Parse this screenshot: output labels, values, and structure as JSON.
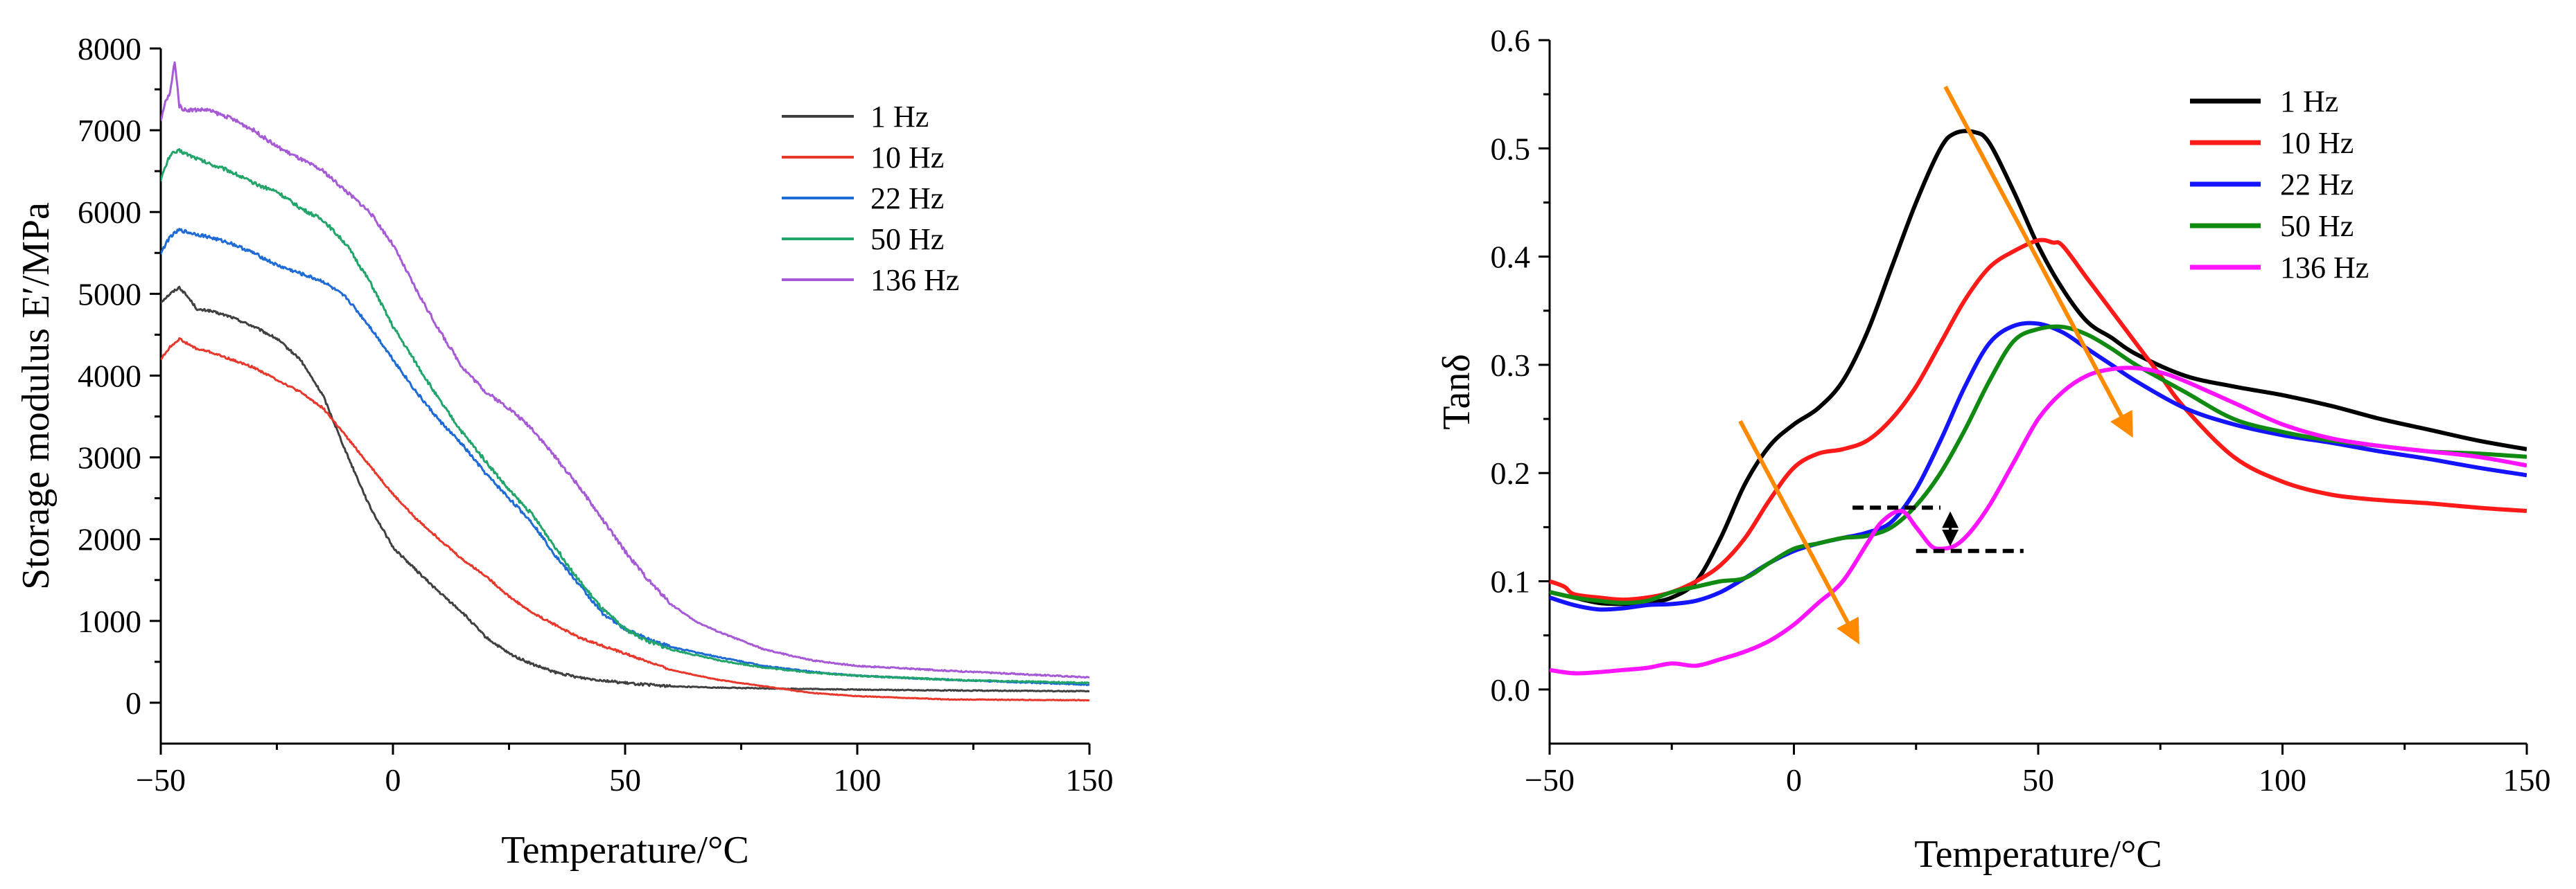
{
  "chart_data": [
    {
      "type": "line",
      "title": "",
      "xlabel": "Temperature/°C",
      "ylabel": "Storage modulus E′/MPa",
      "xlim": [
        -50,
        150
      ],
      "ylim": [
        -500,
        8000
      ],
      "xticks": [
        -50,
        0,
        50,
        100,
        150
      ],
      "yticks": [
        0,
        1000,
        2000,
        3000,
        4000,
        5000,
        6000,
        7000,
        8000
      ],
      "xtick_labels": [
        "−50",
        "0",
        "50",
        "100",
        "150"
      ],
      "ytick_labels": [
        "0",
        "1000",
        "2000",
        "3000",
        "4000",
        "5000",
        "6000",
        "7000",
        "8000"
      ],
      "legend_position": "top-right",
      "series": [
        {
          "name": "1 Hz",
          "color": "#404040",
          "noise": 30,
          "x": [
            -50,
            -48,
            -46,
            -44,
            -42,
            -40,
            -35,
            -30,
            -25,
            -20,
            -15,
            -10,
            -5,
            0,
            5,
            10,
            15,
            20,
            25,
            30,
            35,
            40,
            50,
            60,
            70,
            80,
            100,
            120,
            150
          ],
          "y": [
            4900,
            5000,
            5080,
            4950,
            4800,
            4800,
            4720,
            4600,
            4450,
            4200,
            3750,
            3050,
            2400,
            1900,
            1620,
            1350,
            1100,
            800,
            600,
            470,
            370,
            310,
            240,
            200,
            185,
            175,
            160,
            150,
            140
          ]
        },
        {
          "name": "10 Hz",
          "color": "#e8372b",
          "noise": 25,
          "x": [
            -50,
            -48,
            -46,
            -44,
            -42,
            -40,
            -35,
            -30,
            -25,
            -20,
            -15,
            -10,
            -5,
            0,
            5,
            10,
            15,
            20,
            25,
            30,
            40,
            50,
            60,
            70,
            80,
            90,
            100,
            110,
            120,
            150
          ],
          "y": [
            4200,
            4350,
            4450,
            4380,
            4320,
            4300,
            4200,
            4100,
            3950,
            3800,
            3600,
            3250,
            2900,
            2550,
            2250,
            2000,
            1750,
            1550,
            1300,
            1100,
            800,
            600,
            400,
            280,
            200,
            120,
            80,
            60,
            40,
            30
          ]
        },
        {
          "name": "22 Hz",
          "color": "#1f6bd6",
          "noise": 40,
          "x": [
            -50,
            -48,
            -46,
            -44,
            -40,
            -35,
            -30,
            -25,
            -20,
            -15,
            -10,
            -5,
            0,
            5,
            10,
            15,
            20,
            25,
            30,
            35,
            40,
            45,
            50,
            55,
            60,
            70,
            80,
            90,
            100,
            120,
            150
          ],
          "y": [
            5500,
            5700,
            5780,
            5750,
            5700,
            5620,
            5500,
            5350,
            5250,
            5150,
            4950,
            4600,
            4200,
            3800,
            3450,
            3150,
            2800,
            2500,
            2200,
            1800,
            1450,
            1100,
            900,
            780,
            680,
            560,
            450,
            380,
            330,
            280,
            220
          ]
        },
        {
          "name": "50 Hz",
          "color": "#22a56a",
          "noise": 45,
          "x": [
            -50,
            -48,
            -46,
            -44,
            -40,
            -35,
            -30,
            -25,
            -20,
            -15,
            -10,
            -5,
            0,
            5,
            10,
            15,
            20,
            25,
            30,
            35,
            40,
            45,
            50,
            55,
            60,
            70,
            80,
            90,
            100,
            120,
            150
          ],
          "y": [
            6400,
            6700,
            6750,
            6700,
            6600,
            6500,
            6350,
            6250,
            6050,
            5900,
            5600,
            5150,
            4600,
            4150,
            3700,
            3300,
            2950,
            2600,
            2300,
            1900,
            1500,
            1150,
            900,
            750,
            650,
            520,
            430,
            370,
            330,
            280,
            240
          ]
        },
        {
          "name": "136 Hz",
          "color": "#a65ad6",
          "noise": 45,
          "x": [
            -50,
            -49,
            -48,
            -47,
            -46,
            -45,
            -44,
            -40,
            -35,
            -30,
            -25,
            -20,
            -15,
            -10,
            -5,
            0,
            5,
            10,
            15,
            20,
            25,
            30,
            35,
            40,
            45,
            50,
            55,
            60,
            65,
            70,
            80,
            90,
            100,
            120,
            150
          ],
          "y": [
            7100,
            7350,
            7450,
            7850,
            7300,
            7250,
            7250,
            7250,
            7150,
            7000,
            6800,
            6650,
            6500,
            6250,
            6000,
            5600,
            5050,
            4550,
            4100,
            3800,
            3600,
            3350,
            3000,
            2650,
            2250,
            1850,
            1500,
            1200,
            1000,
            870,
            650,
            520,
            450,
            390,
            310
          ]
        }
      ]
    },
    {
      "type": "line",
      "title": "",
      "xlabel": "Temperature/°C",
      "ylabel": "Tanδ",
      "xlim": [
        -50,
        150
      ],
      "ylim": [
        -0.05,
        0.6
      ],
      "xticks": [
        -50,
        0,
        50,
        100,
        150
      ],
      "yticks": [
        0.0,
        0.1,
        0.2,
        0.3,
        0.4,
        0.5,
        0.6
      ],
      "xtick_labels": [
        "−50",
        "0",
        "50",
        "100",
        "150"
      ],
      "ytick_labels": [
        "0.0",
        "0.1",
        "0.2",
        "0.3",
        "0.4",
        "0.5",
        "0.6"
      ],
      "legend_position": "top-right",
      "annotations": [
        "two orange arrows showing peaks shifting with frequency",
        "dashed guide lines with double-headed arrow between 0.13 and 0.168"
      ],
      "series": [
        {
          "name": "1 Hz",
          "color": "#000000",
          "x": [
            -50,
            -45,
            -40,
            -35,
            -30,
            -25,
            -20,
            -15,
            -10,
            -5,
            0,
            5,
            10,
            15,
            20,
            25,
            30,
            33,
            37,
            40,
            45,
            50,
            55,
            60,
            65,
            70,
            80,
            90,
            100,
            110,
            120,
            130,
            140,
            150
          ],
          "y": [
            0.09,
            0.085,
            0.08,
            0.079,
            0.08,
            0.085,
            0.1,
            0.14,
            0.19,
            0.225,
            0.245,
            0.26,
            0.285,
            0.33,
            0.39,
            0.45,
            0.5,
            0.514,
            0.515,
            0.505,
            0.46,
            0.41,
            0.37,
            0.34,
            0.325,
            0.31,
            0.29,
            0.28,
            0.272,
            0.262,
            0.25,
            0.24,
            0.23,
            0.222
          ]
        },
        {
          "name": "10 Hz",
          "color": "#ff1a1a",
          "x": [
            -50,
            -47,
            -45,
            -40,
            -35,
            -30,
            -25,
            -20,
            -15,
            -10,
            -5,
            0,
            5,
            10,
            15,
            20,
            25,
            30,
            35,
            40,
            45,
            50,
            53,
            55,
            60,
            65,
            70,
            75,
            80,
            90,
            100,
            110,
            120,
            130,
            140,
            150
          ],
          "y": [
            0.1,
            0.095,
            0.088,
            0.085,
            0.083,
            0.085,
            0.09,
            0.1,
            0.115,
            0.14,
            0.175,
            0.205,
            0.218,
            0.222,
            0.23,
            0.25,
            0.28,
            0.32,
            0.36,
            0.39,
            0.405,
            0.415,
            0.413,
            0.41,
            0.38,
            0.35,
            0.32,
            0.29,
            0.26,
            0.215,
            0.192,
            0.18,
            0.175,
            0.172,
            0.168,
            0.165
          ]
        },
        {
          "name": "22 Hz",
          "color": "#1414ff",
          "x": [
            -50,
            -45,
            -40,
            -35,
            -30,
            -25,
            -20,
            -15,
            -10,
            -5,
            0,
            5,
            10,
            15,
            20,
            25,
            30,
            35,
            40,
            45,
            50,
            55,
            60,
            65,
            70,
            80,
            90,
            100,
            110,
            120,
            130,
            140,
            150
          ],
          "y": [
            0.085,
            0.078,
            0.074,
            0.075,
            0.078,
            0.079,
            0.082,
            0.09,
            0.103,
            0.117,
            0.128,
            0.135,
            0.14,
            0.145,
            0.155,
            0.185,
            0.23,
            0.28,
            0.32,
            0.336,
            0.338,
            0.33,
            0.315,
            0.3,
            0.285,
            0.26,
            0.245,
            0.235,
            0.228,
            0.22,
            0.213,
            0.205,
            0.198
          ]
        },
        {
          "name": "50 Hz",
          "color": "#118a11",
          "x": [
            -50,
            -45,
            -40,
            -35,
            -30,
            -25,
            -20,
            -15,
            -10,
            -5,
            0,
            5,
            10,
            15,
            20,
            25,
            30,
            35,
            40,
            45,
            50,
            55,
            60,
            65,
            70,
            80,
            90,
            100,
            110,
            120,
            130,
            140,
            150
          ],
          "y": [
            0.09,
            0.085,
            0.082,
            0.08,
            0.082,
            0.09,
            0.095,
            0.1,
            0.103,
            0.117,
            0.13,
            0.135,
            0.14,
            0.142,
            0.15,
            0.17,
            0.2,
            0.24,
            0.285,
            0.322,
            0.333,
            0.335,
            0.328,
            0.315,
            0.3,
            0.275,
            0.25,
            0.238,
            0.23,
            0.225,
            0.22,
            0.218,
            0.215
          ]
        },
        {
          "name": "136 Hz",
          "color": "#ff14ff",
          "x": [
            -50,
            -45,
            -40,
            -35,
            -30,
            -25,
            -20,
            -15,
            -10,
            -5,
            0,
            5,
            10,
            15,
            18,
            22,
            25,
            28,
            30,
            33,
            36,
            40,
            45,
            50,
            55,
            60,
            65,
            70,
            75,
            80,
            90,
            100,
            110,
            120,
            130,
            140,
            150
          ],
          "y": [
            0.018,
            0.015,
            0.016,
            0.018,
            0.02,
            0.024,
            0.022,
            0.028,
            0.035,
            0.045,
            0.06,
            0.08,
            0.1,
            0.135,
            0.155,
            0.165,
            0.15,
            0.133,
            0.13,
            0.133,
            0.145,
            0.17,
            0.21,
            0.25,
            0.275,
            0.29,
            0.296,
            0.297,
            0.293,
            0.285,
            0.265,
            0.245,
            0.232,
            0.225,
            0.22,
            0.215,
            0.207
          ]
        }
      ]
    }
  ]
}
